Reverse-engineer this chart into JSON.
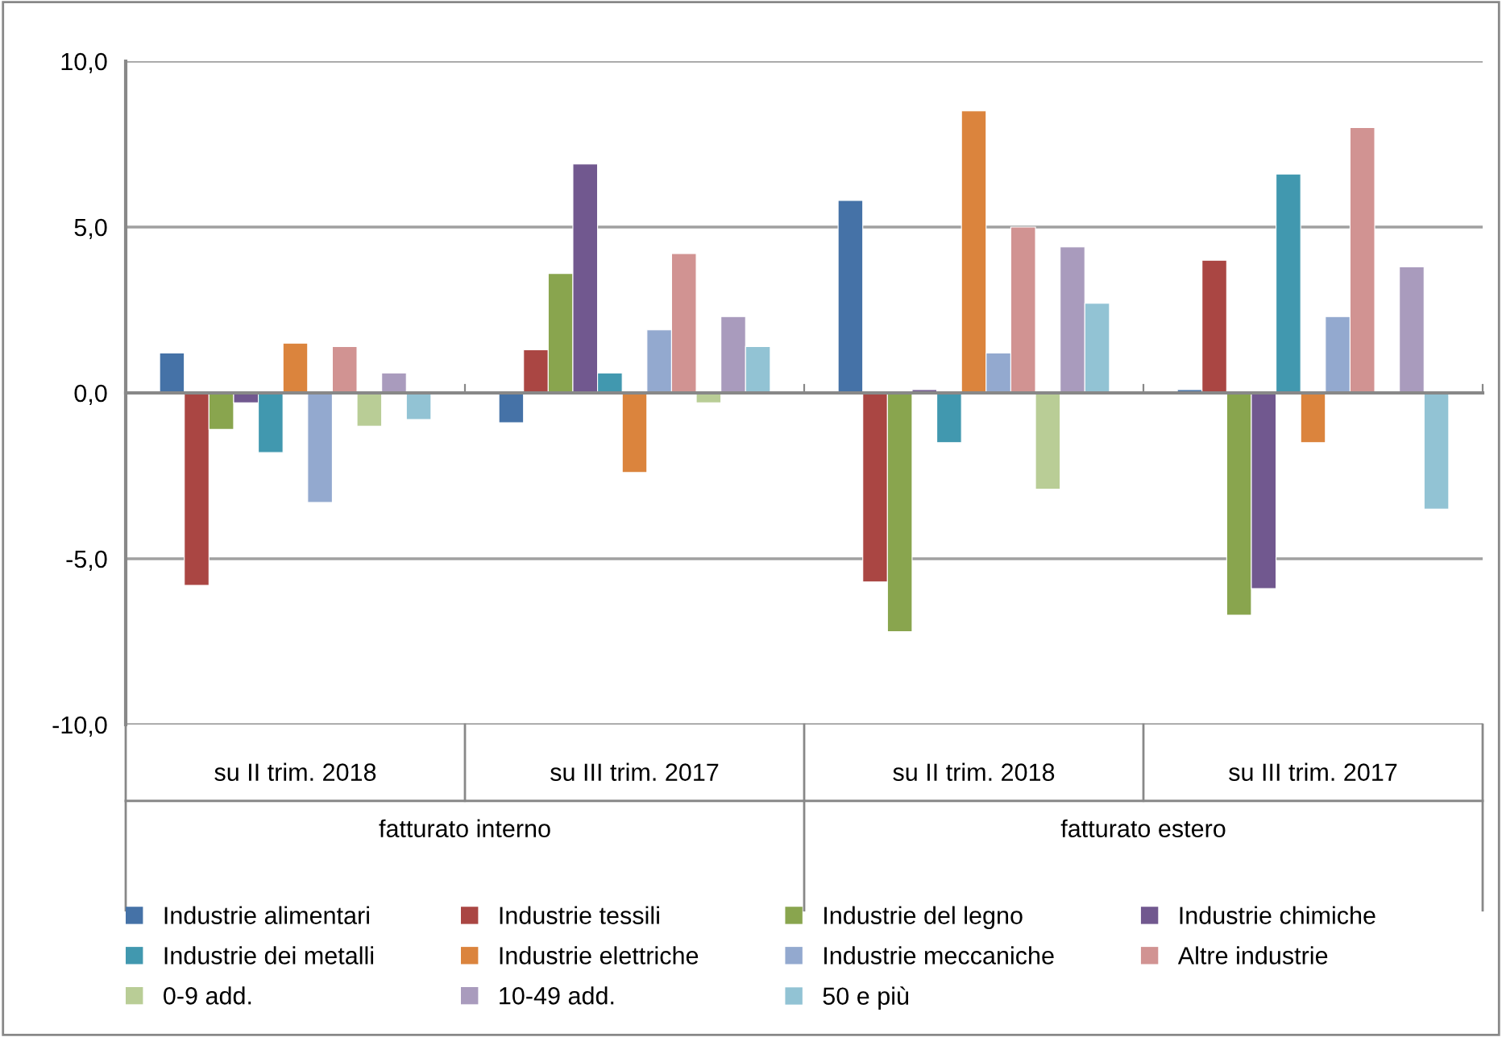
{
  "chart_data": {
    "type": "bar",
    "categories": [
      "su II trim. 2018",
      "su III trim. 2017",
      "su II trim. 2018",
      "su III trim. 2017"
    ],
    "annotations": [
      "fatturato interno",
      "fatturato estero"
    ],
    "ylim": [
      -10,
      10
    ],
    "yticks": [
      {
        "value": -10,
        "label": "-10,0"
      },
      {
        "value": -5,
        "label": "-5,0"
      },
      {
        "value": 0,
        "label": "0,0"
      },
      {
        "value": 5,
        "label": "5,0"
      },
      {
        "value": 10,
        "label": "10,0"
      }
    ],
    "grid": "y",
    "legend": "bottom",
    "series": [
      {
        "name": "Industrie alimentari",
        "color": "#4572a7",
        "values": [
          1.2,
          -0.9,
          5.8,
          0.1
        ]
      },
      {
        "name": "Industrie tessili",
        "color": "#aa4643",
        "values": [
          -5.8,
          1.3,
          -5.7,
          4.0
        ]
      },
      {
        "name": "Industrie del legno",
        "color": "#89a54e",
        "values": [
          -1.1,
          3.6,
          -7.2,
          -6.7
        ]
      },
      {
        "name": "Industrie chimiche",
        "color": "#71588f",
        "values": [
          -0.3,
          6.9,
          0.1,
          -5.9
        ]
      },
      {
        "name": "Industrie dei metalli",
        "color": "#4198af",
        "values": [
          -1.8,
          0.6,
          -1.5,
          6.6
        ]
      },
      {
        "name": "Industrie elettriche",
        "color": "#db843d",
        "values": [
          1.5,
          -2.4,
          8.5,
          -1.5
        ]
      },
      {
        "name": "Industrie meccaniche",
        "color": "#93a9cf",
        "values": [
          -3.3,
          1.9,
          1.2,
          2.3
        ]
      },
      {
        "name": "Altre industrie",
        "color": "#d19392",
        "values": [
          1.4,
          4.2,
          5.0,
          8.0
        ]
      },
      {
        "name": "0-9 add.",
        "color": "#b9cd96",
        "values": [
          -1.0,
          -0.3,
          -2.9,
          null
        ]
      },
      {
        "name": "10-49 add.",
        "color": "#a99bbd",
        "values": [
          0.6,
          2.3,
          4.4,
          3.8
        ]
      },
      {
        "name": "50 e più",
        "color": "#92c3d4",
        "values": [
          -0.8,
          1.4,
          2.7,
          -3.5
        ]
      }
    ]
  }
}
